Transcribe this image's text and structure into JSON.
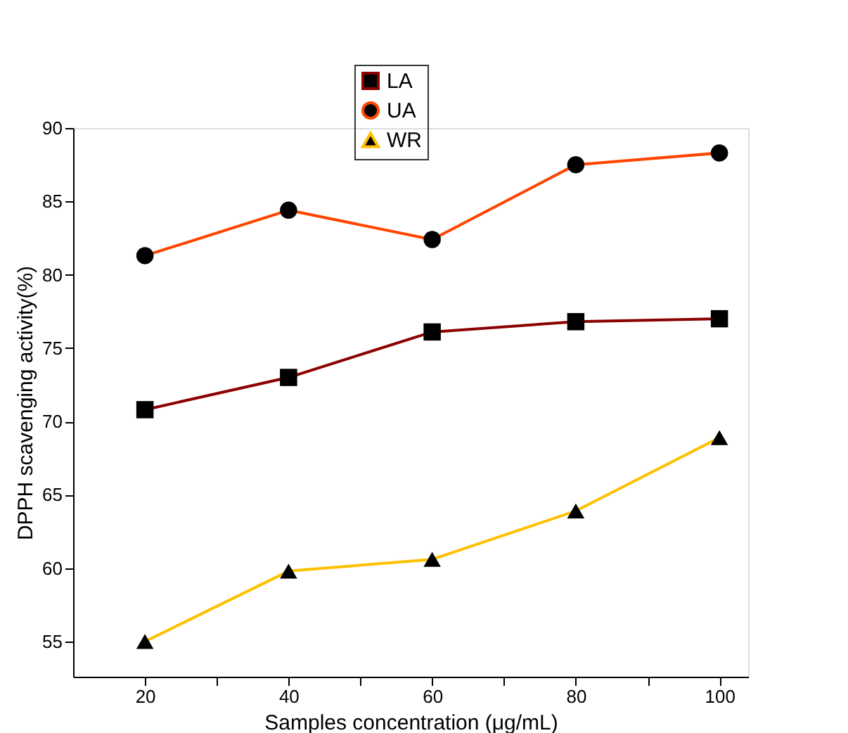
{
  "chart_data": {
    "type": "line",
    "xlabel": "Samples concentration (μg/mL)",
    "ylabel": "DPPH scavenging activity(%)",
    "x": [
      20,
      40,
      60,
      80,
      100
    ],
    "series": [
      {
        "name": "LA",
        "color": "#8b0000",
        "marker": "square",
        "values": [
          70.8,
          73.0,
          76.1,
          76.8,
          77.0
        ]
      },
      {
        "name": "UA",
        "color": "#ff4500",
        "marker": "circle",
        "values": [
          81.3,
          84.4,
          82.4,
          87.5,
          88.3
        ]
      },
      {
        "name": "WR",
        "color": "#ffc000",
        "marker": "triangle",
        "values": [
          55.0,
          59.8,
          60.6,
          63.9,
          68.9
        ]
      }
    ],
    "xlim": [
      10,
      104
    ],
    "xticks": [
      20,
      {
        "value": 30,
        "label": null
      },
      40,
      {
        "value": 50,
        "label": null
      },
      60,
      {
        "value": 70,
        "label": null
      },
      80,
      {
        "value": 90,
        "label": null
      },
      100
    ],
    "ylim": [
      52.6,
      90
    ],
    "yticks": [
      55,
      60,
      65,
      70,
      75,
      80,
      85,
      90
    ],
    "grid": false,
    "legend": "top",
    "line_style": "solid"
  }
}
